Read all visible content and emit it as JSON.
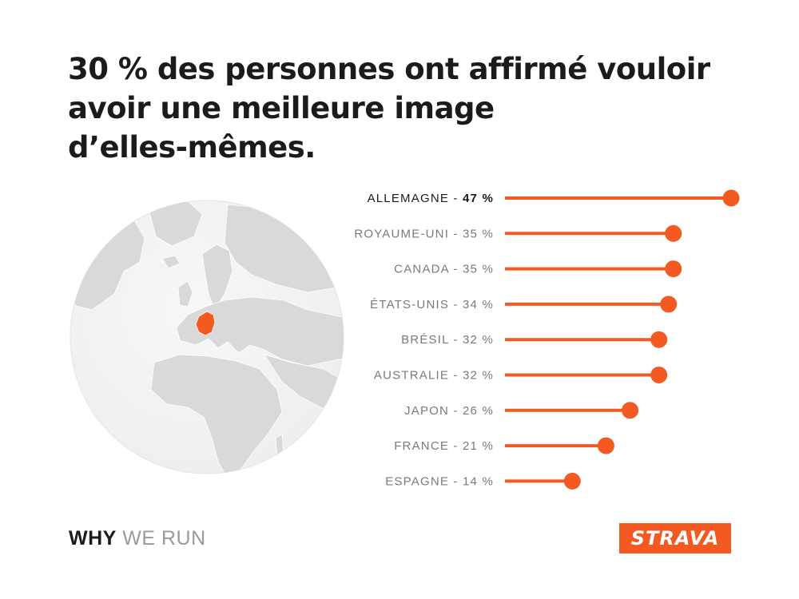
{
  "headline": {
    "line1": "30 % des personnes ont affirmé vouloir",
    "line2": "avoir une meilleure image",
    "line3": "d’elles-mêmes."
  },
  "colors": {
    "accent": "#f25a22",
    "text_dark": "#1b1b1b",
    "text_muted": "#7a7a7a",
    "globe_land": "#d9d9d9",
    "globe_ocean": "#f2f2f2"
  },
  "chart_data": {
    "type": "bar",
    "orientation": "horizontal",
    "style": "lollipop",
    "categories": [
      "ALLEMAGNE",
      "ROYAUME-UNI",
      "CANADA",
      "ÉTATS-UNIS",
      "BRÉSIL",
      "AUSTRALIE",
      "JAPON",
      "FRANCE",
      "ESPAGNE"
    ],
    "values": [
      47,
      35,
      35,
      34,
      32,
      32,
      26,
      21,
      14
    ],
    "labels": [
      "47 %",
      "35 %",
      "35 %",
      "34 %",
      "32 %",
      "32 %",
      "26 %",
      "21 %",
      "14 %"
    ],
    "highlight": "ALLEMAGNE",
    "xlim": [
      0,
      47
    ],
    "grid": false,
    "legend": "none"
  },
  "globe": {
    "highlighted_country": "Germany"
  },
  "footer": {
    "why": "WHY",
    "we_run": "WE RUN",
    "logo_text": "STRAVA"
  }
}
